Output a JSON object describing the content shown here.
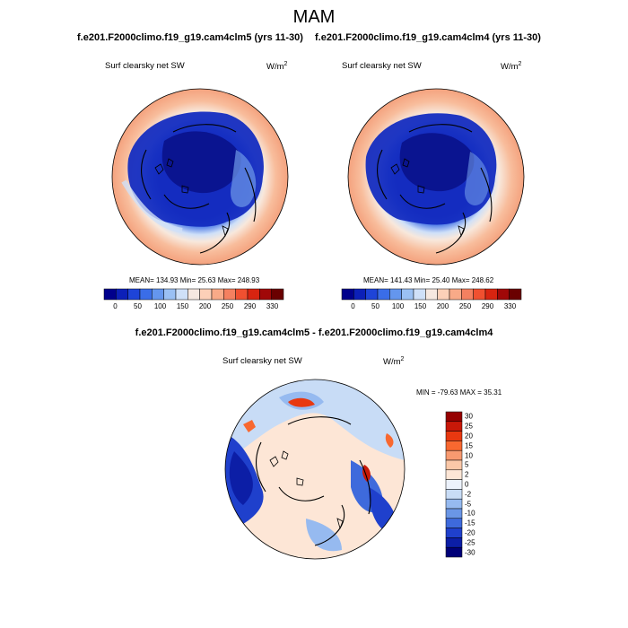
{
  "figure": {
    "title": "MAM",
    "panel_left": {
      "title": "f.e201.F2000climo.f19_g19.cam4clm5 (yrs 11-30)",
      "label": "Surf clearsky net SW",
      "units": "W/m",
      "units_exp": "2",
      "mean": "134.93",
      "min": "25.63",
      "max": "248.93",
      "stats_text": "MEAN= 134.93  Min=  25.63  Max= 248.93"
    },
    "panel_right": {
      "title": "f.e201.F2000climo.f19_g19.cam4clm4 (yrs 11-30)",
      "label": "Surf clearsky net SW",
      "units": "W/m",
      "units_exp": "2",
      "mean": "141.43",
      "min": "25.40",
      "max": "248.62",
      "stats_text": "MEAN= 141.43  Min=  25.40  Max= 248.62"
    },
    "panel_diff": {
      "title": "f.e201.F2000climo.f19_g19.cam4clm5 - f.e201.F2000climo.f19_g19.cam4clm4",
      "label": "Surf clearsky net SW",
      "units": "W/m",
      "units_exp": "2",
      "min": "-79.63",
      "max": "35.31",
      "stats_text": "MIN = -79.63 MAX =  35.31"
    },
    "colorbar_abs": {
      "ticks": [
        "0",
        "50",
        "100",
        "150",
        "200",
        "250",
        "290",
        "330"
      ],
      "colors": [
        "#00008c",
        "#0c20b8",
        "#1e44d8",
        "#3a6de8",
        "#6496ee",
        "#9ac0f4",
        "#cfe0f8",
        "#f6e8e0",
        "#fcd0b8",
        "#f8aa88",
        "#f48060",
        "#f05030",
        "#d82410",
        "#a00808",
        "#6a0000"
      ]
    },
    "colorbar_diff": {
      "labels": [
        "30",
        "25",
        "20",
        "15",
        "10",
        "5",
        "2",
        "0",
        "-2",
        "-5",
        "-10",
        "-15",
        "-20",
        "-25",
        "-30"
      ],
      "colors": [
        "#960000",
        "#c81808",
        "#e83810",
        "#f86830",
        "#f89a70",
        "#fbc8a8",
        "#fde6d6",
        "#ecf2fc",
        "#c8dcf6",
        "#96baf0",
        "#6a96e6",
        "#3e6adc",
        "#1f40cc",
        "#0c1ea6",
        "#000078"
      ]
    }
  }
}
